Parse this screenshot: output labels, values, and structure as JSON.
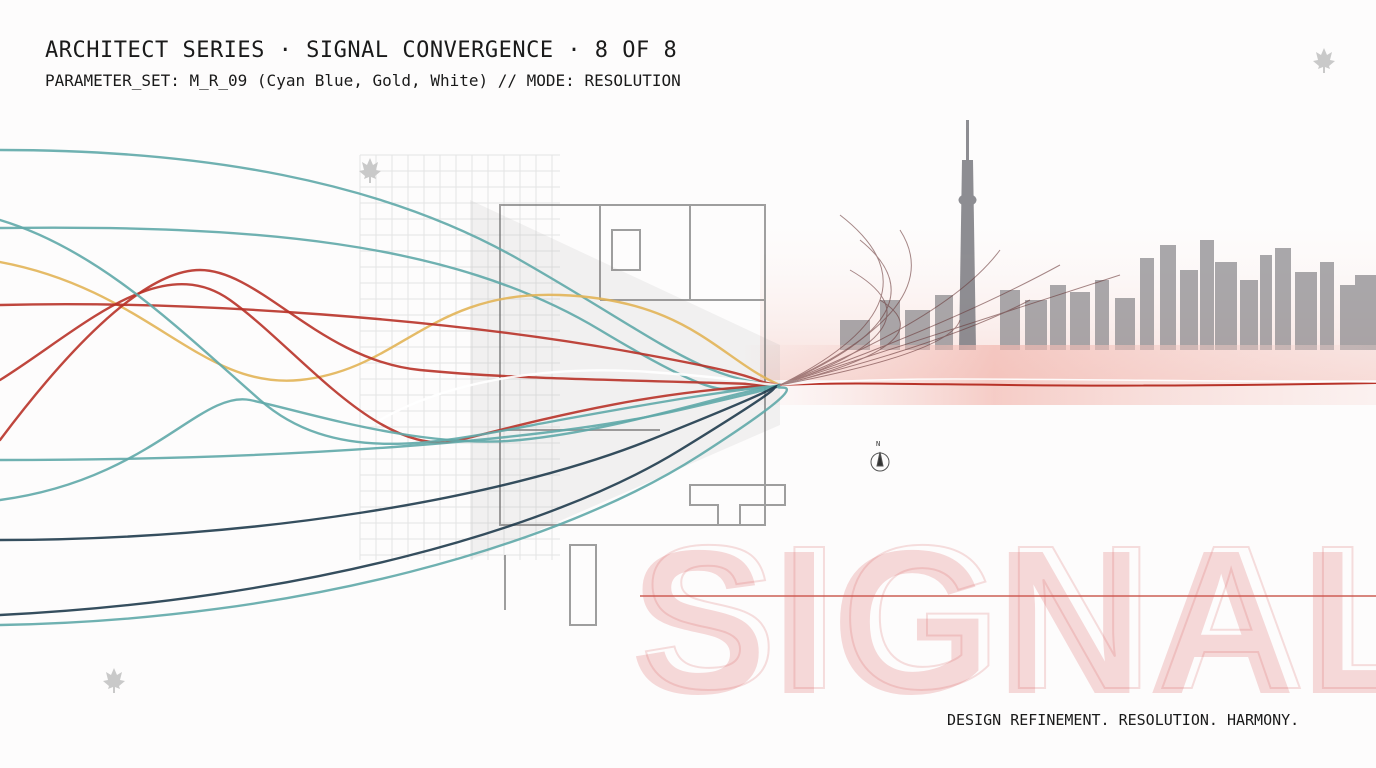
{
  "header": {
    "title": "ARCHITECT SERIES · SIGNAL CONVERGENCE · 8 OF 8",
    "subtitle": "PARAMETER_SET: M_R_09 (Cyan Blue, Gold, White) // MODE: RESOLUTION"
  },
  "poster": {
    "headline": "SIGNAL",
    "tagline": "DESIGN REFINEMENT. RESOLUTION. HARMONY.",
    "compass_label": "N"
  },
  "palette": {
    "cyan": "#5fa8a8",
    "gold": "#e2b457",
    "red": "#b83228",
    "navy": "#1f3b4c",
    "white": "#ffffff",
    "skyline": "#8a8a8e"
  },
  "icons": [
    "maple-leaf-icon",
    "compass-icon",
    "arrow-icon"
  ]
}
